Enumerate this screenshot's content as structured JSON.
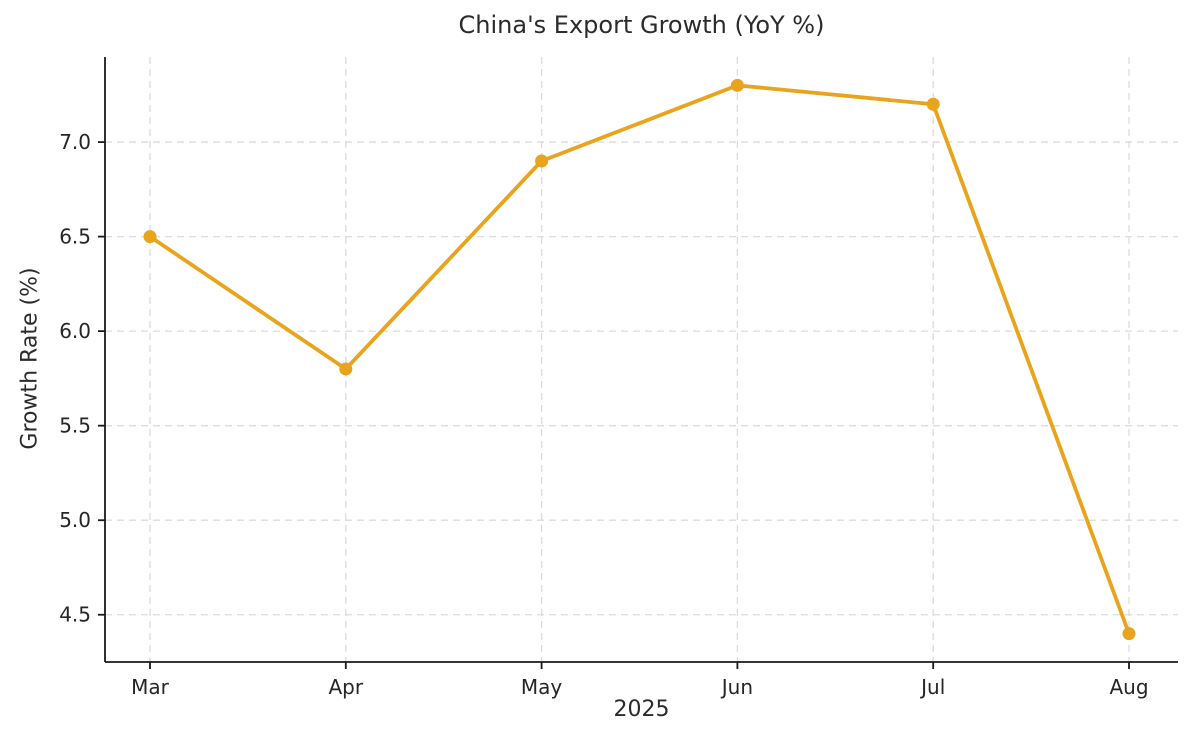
{
  "chart_data": {
    "type": "line",
    "title": "China's Export Growth (YoY %)",
    "xlabel": "2025",
    "ylabel": "Growth Rate (%)",
    "categories": [
      "Mar",
      "Apr",
      "May",
      "Jun",
      "Jul",
      "Aug"
    ],
    "series": [
      {
        "values": [
          6.5,
          5.8,
          6.9,
          7.3,
          7.2,
          4.4
        ],
        "color": "#E8A41C",
        "marker": "circle"
      }
    ],
    "yticks": [
      4.5,
      5.0,
      5.5,
      6.0,
      6.5,
      7.0
    ],
    "ylim": [
      4.25,
      7.45
    ],
    "grid": {
      "visible": true,
      "style": "dashed",
      "color": "#dcdcdc"
    },
    "axis_color": "#1a1a1a",
    "text_color": "#262626",
    "legend_position": "none"
  }
}
